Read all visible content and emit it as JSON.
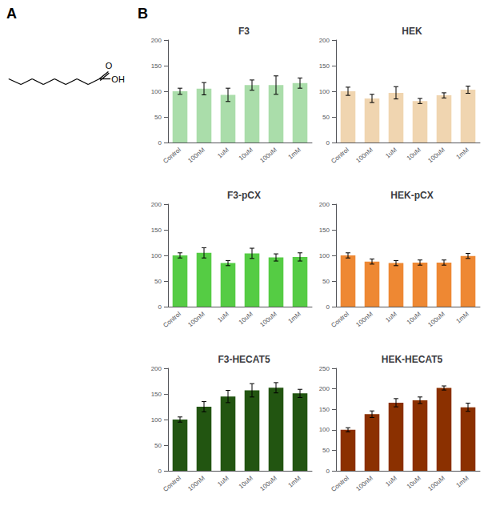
{
  "annotations": [
    "A",
    "B",
    "O",
    "OH"
  ],
  "chart_data": [
    {
      "type": "bar",
      "title": "F3",
      "categories": [
        "Control",
        "100nM",
        "1uM",
        "10uM",
        "100uM",
        "1mM"
      ],
      "values": [
        100,
        105,
        93,
        112,
        112,
        116
      ],
      "errors": [
        6,
        12,
        13,
        10,
        18,
        10
      ],
      "color": "#aaddaa",
      "ylim": [
        0,
        200
      ],
      "yticks": [
        0,
        50,
        100,
        150,
        200
      ],
      "grid": false
    },
    {
      "type": "bar",
      "title": "HEK",
      "categories": [
        "Control",
        "100nM",
        "1uM",
        "10uM",
        "100uM",
        "1mM"
      ],
      "values": [
        100,
        86,
        97,
        81,
        92,
        103
      ],
      "errors": [
        8,
        8,
        12,
        5,
        5,
        7
      ],
      "color": "#f0d5b0",
      "ylim": [
        0,
        200
      ],
      "yticks": [
        0,
        50,
        100,
        150,
        200
      ],
      "grid": false
    },
    {
      "type": "bar",
      "title": "F3-pCX",
      "categories": [
        "Control",
        "100nM",
        "1uM",
        "10uM",
        "100uM",
        "1mM"
      ],
      "values": [
        100,
        105,
        85,
        104,
        96,
        97
      ],
      "errors": [
        5,
        10,
        5,
        10,
        7,
        8
      ],
      "color": "#55cc44",
      "ylim": [
        0,
        200
      ],
      "yticks": [
        0,
        50,
        100,
        150,
        200
      ],
      "grid": false
    },
    {
      "type": "bar",
      "title": "HEK-pCX",
      "categories": [
        "Control",
        "100nM",
        "1uM",
        "10uM",
        "100uM",
        "1mM"
      ],
      "values": [
        100,
        88,
        85,
        86,
        86,
        99
      ],
      "errors": [
        5,
        5,
        5,
        5,
        5,
        5
      ],
      "color": "#ee8833",
      "ylim": [
        0,
        200
      ],
      "yticks": [
        0,
        50,
        100,
        150,
        200
      ],
      "grid": false
    },
    {
      "type": "bar",
      "title": "F3-HECAT5",
      "categories": [
        "Control",
        "100nM",
        "1uM",
        "10uM",
        "100uM",
        "1mM"
      ],
      "values": [
        100,
        125,
        145,
        157,
        162,
        151
      ],
      "errors": [
        5,
        10,
        12,
        13,
        10,
        8
      ],
      "color": "#225511",
      "ylim": [
        0,
        200
      ],
      "yticks": [
        0,
        50,
        100,
        150,
        200
      ],
      "grid": false
    },
    {
      "type": "bar",
      "title": "HEK-HECAT5",
      "categories": [
        "Control",
        "100nM",
        "1uM",
        "10uM",
        "100uM",
        "1mM"
      ],
      "values": [
        100,
        138,
        166,
        172,
        202,
        155
      ],
      "errors": [
        5,
        8,
        10,
        8,
        5,
        10
      ],
      "color": "#8B3000",
      "ylim": [
        0,
        250
      ],
      "yticks": [
        0,
        50,
        100,
        150,
        200,
        250
      ],
      "grid": false
    }
  ]
}
